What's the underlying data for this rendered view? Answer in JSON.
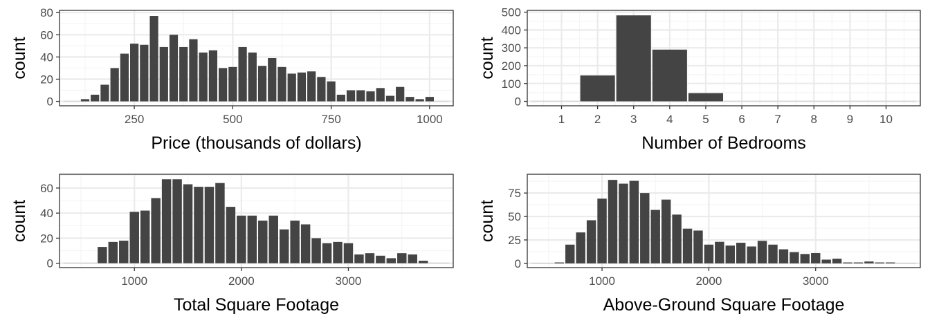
{
  "colors": {
    "bar": "#444444",
    "grid_major": "#ebebeb",
    "grid_minor": "#f5f5f5",
    "frame": "#333333",
    "tick": "#4d4d4d"
  },
  "chart_data": [
    {
      "type": "bar",
      "xlabel": "Price (thousands of dollars)",
      "ylabel": "count",
      "xlim": [
        60,
        1060
      ],
      "ylim": [
        -4,
        82
      ],
      "xticks": [
        250,
        500,
        750,
        1000
      ],
      "yticks": [
        0,
        20,
        40,
        60,
        80
      ],
      "bin_width": 25,
      "x": [
        125,
        150,
        175,
        200,
        225,
        250,
        275,
        300,
        325,
        350,
        375,
        400,
        425,
        450,
        475,
        500,
        525,
        550,
        575,
        600,
        625,
        650,
        675,
        700,
        725,
        750,
        775,
        800,
        825,
        850,
        875,
        900,
        925,
        950,
        975,
        1000
      ],
      "values": [
        2,
        6,
        15,
        30,
        43,
        52,
        51,
        77,
        49,
        60,
        49,
        56,
        44,
        46,
        30,
        31,
        49,
        44,
        32,
        39,
        31,
        25,
        26,
        27,
        22,
        18,
        6,
        10,
        10,
        9,
        12,
        5,
        13,
        4,
        2,
        4
      ],
      "grid": true
    },
    {
      "type": "bar",
      "xlabel": "Number of Bedrooms",
      "ylabel": "count",
      "xlim": [
        0.05,
        10.95
      ],
      "ylim": [
        -25,
        510
      ],
      "xticks": [
        1,
        2,
        3,
        4,
        5,
        6,
        7,
        8,
        9,
        10
      ],
      "yticks": [
        0,
        100,
        200,
        300,
        400,
        500
      ],
      "bin_width": 1,
      "x": [
        2,
        3,
        4,
        5
      ],
      "values": [
        145,
        482,
        290,
        46
      ],
      "grid": true
    },
    {
      "type": "bar",
      "xlabel": "Total Square Footage",
      "ylabel": "count",
      "xlim": [
        300,
        3980
      ],
      "ylim": [
        -3.5,
        71
      ],
      "xticks": [
        1000,
        2000,
        3000
      ],
      "yticks": [
        0,
        20,
        40,
        60
      ],
      "bin_width": 100,
      "x": [
        700,
        800,
        900,
        1000,
        1100,
        1200,
        1300,
        1400,
        1500,
        1600,
        1700,
        1800,
        1900,
        2000,
        2100,
        2200,
        2300,
        2400,
        2500,
        2600,
        2700,
        2800,
        2900,
        3000,
        3100,
        3200,
        3300,
        3400,
        3500,
        3600,
        3700
      ],
      "values": [
        13,
        17,
        18,
        41,
        42,
        52,
        67,
        67,
        63,
        61,
        61,
        64,
        45,
        38,
        38,
        34,
        38,
        27,
        34,
        31,
        20,
        16,
        17,
        16,
        7,
        8,
        6,
        4,
        8,
        7,
        2
      ],
      "grid": true
    },
    {
      "type": "bar",
      "xlabel": "Above-Ground Square Footage",
      "ylabel": "count",
      "xlim": [
        300,
        3980
      ],
      "ylim": [
        -4.5,
        95
      ],
      "xticks": [
        1000,
        2000,
        3000
      ],
      "yticks": [
        0,
        25,
        50,
        75
      ],
      "bin_width": 100,
      "x": [
        600,
        700,
        800,
        900,
        1000,
        1100,
        1200,
        1300,
        1400,
        1500,
        1600,
        1700,
        1800,
        1900,
        2000,
        2100,
        2200,
        2300,
        2400,
        2500,
        2600,
        2700,
        2800,
        2900,
        3000,
        3100,
        3200,
        3300,
        3400,
        3500,
        3600,
        3700
      ],
      "values": [
        1,
        20,
        33,
        46,
        69,
        89,
        85,
        88,
        75,
        57,
        68,
        52,
        37,
        35,
        20,
        23,
        19,
        22,
        18,
        24,
        20,
        15,
        12,
        10,
        11,
        4,
        5,
        1,
        1,
        2,
        1,
        1
      ],
      "grid": true
    }
  ]
}
